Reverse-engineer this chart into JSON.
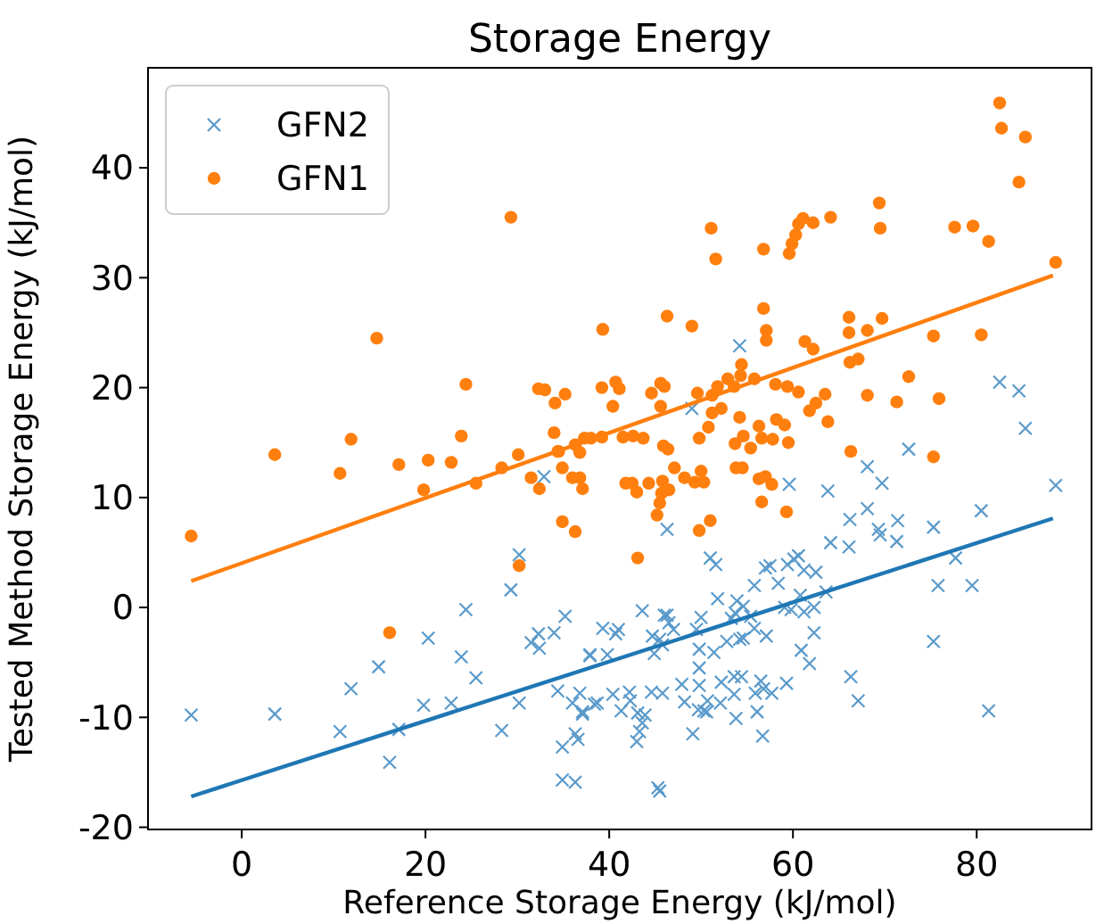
{
  "chart_data": {
    "type": "scatter",
    "title": "Storage Energy",
    "xlabel": "Reference Storage Energy (kJ/mol)",
    "ylabel": "Tested Method Storage Energy (kJ/mol)",
    "xlim": [
      -10.2,
      92.5
    ],
    "ylim": [
      -20.2,
      49.1
    ],
    "xticks": [
      0,
      20,
      40,
      60,
      80
    ],
    "yticks": [
      -20,
      -10,
      0,
      10,
      20,
      30,
      40
    ],
    "legend": "top left",
    "series": [
      {
        "name": "GFN2",
        "color": "#5a9acb",
        "marker": "cross",
        "x": [
          -5.5,
          3.6,
          10.7,
          11.9,
          14.9,
          16.1,
          17.1,
          19.8,
          20.3,
          22.8,
          23.9,
          24.4,
          25.5,
          28.3,
          29.3,
          30.2,
          30.2,
          31.5,
          32.3,
          32.4,
          32.9,
          34.0,
          34.4,
          34.9,
          35.2,
          34.9,
          36.3,
          36.0,
          36.8,
          37.1,
          36.3,
          36.6,
          37.9,
          38.4,
          72.6,
          68.1,
          69.7,
          59.6,
          63.8,
          46.3,
          88.6,
          80.5,
          75.3,
          66.2,
          68.1,
          71.4,
          69.3,
          69.5,
          71.3,
          64.1,
          66.1,
          77.7,
          75.8,
          79.5,
          75.3,
          81.3,
          66.3,
          67.1,
          51.0,
          51.6,
          55.8,
          57.0,
          57.5,
          58.4,
          59.4,
          60.6,
          60.1,
          61.2,
          62.5,
          51.8,
          53.9,
          54.6,
          53.7,
          55.4,
          53.3,
          50.0,
          46.3,
          43.6,
          46.5,
          59.1,
          60.8,
          59.8,
          61.2,
          62.3,
          63.6,
          62.3,
          60.9,
          61.8,
          55.8,
          54.6,
          57.1,
          52.8,
          51.4,
          49.8,
          49.8,
          49.5,
          39.3,
          40.7,
          41.0,
          44.7,
          45.5,
          45.8,
          47.0,
          46.0,
          37.9,
          39.8,
          44.9,
          47.9,
          49.8,
          52.2,
          53.6,
          54.4,
          56.5,
          56.8,
          57.7,
          59.3,
          55.9,
          53.6,
          52.1,
          50.7,
          50.3,
          49.7,
          50.6,
          48.2,
          45.8,
          44.6,
          42.2,
          40.4,
          38.7,
          37.1,
          41.3,
          42.3,
          43.1,
          43.9,
          43.6,
          43.3,
          43.0,
          49.1,
          53.8,
          56.1,
          56.7,
          45.5,
          45.3,
          54.2,
          54.2,
          49.0,
          82.5,
          84.6,
          85.3
        ],
        "values": [
          -9.8,
          -9.7,
          -11.3,
          -7.4,
          -5.4,
          -14.1,
          -11.1,
          -8.9,
          -2.8,
          -8.7,
          -4.5,
          -0.2,
          -6.4,
          -11.2,
          1.6,
          4.8,
          -8.7,
          -3.2,
          -2.4,
          -3.7,
          11.9,
          -2.3,
          -7.6,
          -12.7,
          -0.8,
          -15.7,
          -15.9,
          -8.7,
          -7.8,
          -9.7,
          -11.5,
          -12.0,
          -4.3,
          -8.8,
          14.4,
          12.8,
          11.3,
          11.2,
          10.6,
          7.1,
          11.1,
          8.8,
          7.3,
          8.0,
          9.0,
          7.9,
          7.1,
          6.6,
          6.0,
          5.9,
          5.5,
          4.5,
          2.0,
          2.0,
          -3.1,
          -9.4,
          -6.3,
          -8.5,
          4.5,
          3.9,
          2.0,
          3.6,
          3.8,
          2.2,
          3.9,
          4.7,
          4.4,
          3.4,
          3.2,
          0.8,
          0.6,
          0.1,
          -0.5,
          -0.8,
          -1.0,
          -0.9,
          -0.7,
          -0.3,
          -1.4,
          0.0,
          1.1,
          -0.2,
          -0.4,
          0.0,
          1.4,
          -2.3,
          -3.9,
          -5.1,
          -1.9,
          -2.8,
          -2.6,
          -3.1,
          -4.1,
          -3.8,
          -5.5,
          -2.0,
          -1.9,
          -2.4,
          -2.0,
          -2.6,
          -2.9,
          -3.4,
          -2.0,
          -0.7,
          -4.4,
          -4.3,
          -4.2,
          -7.0,
          -7.1,
          -6.8,
          -6.3,
          -6.3,
          -6.7,
          -7.4,
          -7.8,
          -6.9,
          -7.8,
          -7.9,
          -8.7,
          -8.5,
          -9.4,
          -9.3,
          -9.5,
          -8.6,
          -7.8,
          -7.7,
          -7.7,
          -7.9,
          -8.7,
          -9.5,
          -9.4,
          -8.5,
          -9.6,
          -9.8,
          -10.5,
          -11.3,
          -12.2,
          -11.5,
          -10.1,
          -9.5,
          -11.7,
          -16.7,
          -16.4,
          -2.9,
          23.8,
          18.1,
          20.5,
          19.7,
          16.3
        ]
      },
      {
        "name": "GFN1",
        "color": "#ff7f0e",
        "marker": "circle",
        "x": [
          29.3,
          14.7,
          24.4,
          32.3,
          33.0,
          35.2,
          34.1,
          34.0,
          23.9,
          11.9,
          3.6,
          30.1,
          34.5,
          36.3,
          38.0,
          36.8,
          -5.5,
          10.7,
          17.1,
          20.3,
          22.8,
          19.8,
          25.5,
          28.3,
          31.5,
          32.4,
          34.4,
          34.9,
          36.0,
          36.8,
          37.1,
          34.9,
          36.3,
          30.2,
          16.1,
          82.5,
          82.7,
          85.3,
          84.6,
          88.6,
          77.6,
          79.6,
          81.3,
          69.4,
          69.5,
          64.1,
          62.2,
          61.1,
          60.6,
          60.3,
          59.9,
          59.6,
          51.1,
          51.6,
          56.8,
          56.8,
          57.1,
          57.1,
          46.3,
          49.0,
          39.3,
          66.1,
          66.1,
          68.1,
          69.7,
          61.3,
          62.2,
          75.3,
          80.5,
          66.2,
          67.1,
          72.6,
          75.9,
          71.3,
          68.1,
          54.4,
          54.3,
          55.8,
          52.9,
          51.8,
          53.6,
          58.1,
          59.4,
          60.6,
          63.5,
          62.5,
          61.8,
          63.8,
          39.2,
          40.7,
          41.1,
          40.4,
          44.6,
          45.6,
          46.0,
          45.6,
          49.6,
          51.2,
          52.2,
          51.2,
          50.8,
          49.8,
          54.2,
          54.6,
          56.3,
          56.6,
          58.2,
          59.1,
          57.8,
          59.5,
          53.7,
          55.4,
          37.3,
          39.2,
          41.5,
          42.6,
          43.7,
          45.9,
          46.4,
          66.3,
          75.3,
          41.8,
          42.5,
          44.3,
          45.8,
          47.1,
          48.2,
          49.3,
          50.0,
          50.3,
          43.0,
          45.7,
          46.5,
          45.5,
          45.2,
          49.8,
          51.0,
          43.1,
          53.8,
          54.5,
          56.3,
          57.0,
          57.7,
          56.6,
          59.3
        ],
        "values": [
          35.5,
          24.5,
          20.3,
          19.9,
          19.8,
          19.4,
          18.6,
          15.9,
          15.6,
          15.3,
          13.9,
          13.9,
          14.2,
          14.8,
          15.4,
          14.1,
          6.5,
          12.2,
          13.0,
          13.4,
          13.2,
          10.7,
          11.3,
          12.7,
          11.8,
          10.8,
          14.2,
          12.7,
          11.8,
          11.8,
          10.8,
          7.8,
          6.9,
          3.8,
          -2.3,
          45.9,
          43.6,
          42.8,
          38.7,
          31.4,
          34.6,
          34.7,
          33.3,
          36.8,
          34.5,
          35.5,
          35.0,
          35.4,
          34.9,
          33.9,
          33.1,
          32.2,
          34.5,
          31.7,
          32.6,
          27.2,
          25.2,
          24.3,
          26.5,
          25.6,
          25.3,
          26.4,
          25.0,
          25.2,
          26.3,
          24.2,
          23.5,
          24.7,
          24.8,
          22.3,
          22.6,
          21.0,
          19.0,
          18.7,
          19.3,
          22.1,
          21.1,
          20.8,
          20.8,
          20.1,
          20.1,
          20.3,
          20.1,
          19.6,
          19.4,
          18.6,
          17.9,
          16.9,
          20.0,
          20.5,
          19.9,
          18.3,
          19.5,
          20.4,
          20.1,
          18.3,
          19.5,
          19.3,
          18.1,
          17.7,
          16.4,
          15.4,
          17.3,
          15.6,
          16.5,
          15.4,
          17.1,
          16.6,
          15.3,
          15.0,
          14.9,
          14.5,
          15.4,
          15.5,
          15.5,
          15.6,
          15.4,
          14.7,
          14.4,
          14.2,
          13.7,
          11.3,
          11.3,
          11.3,
          11.5,
          12.7,
          11.8,
          11.4,
          12.4,
          11.4,
          10.5,
          10.4,
          10.7,
          9.5,
          8.4,
          7.0,
          7.9,
          4.5,
          12.7,
          12.7,
          11.7,
          11.9,
          11.2,
          9.6,
          8.7
        ]
      },
      {
        "type": "line",
        "color": "#1f77b4",
        "marker": "none",
        "x": [
          -5.5,
          88.3
        ],
        "values": [
          -17.2,
          8.1
        ]
      },
      {
        "type": "line",
        "color": "#ff7f0e",
        "marker": "none",
        "x": [
          -5.5,
          88.3
        ],
        "values": [
          2.4,
          30.2
        ]
      }
    ]
  }
}
